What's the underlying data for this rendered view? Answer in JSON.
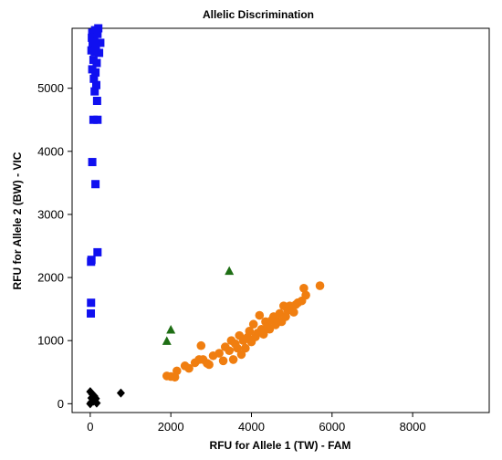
{
  "chart_data": {
    "type": "scatter",
    "title": "Allelic Discrimination",
    "xlabel": "RFU for Allele 1 (TW) - FAM",
    "ylabel": "RFU for Allele 2 (BW) - VIC",
    "xlim": [
      -450,
      9900
    ],
    "ylim": [
      -140,
      5950
    ],
    "x_ticks": [
      0,
      2000,
      4000,
      6000,
      8000
    ],
    "y_ticks": [
      0,
      1000,
      2000,
      3000,
      4000,
      5000
    ],
    "grid": false,
    "legend": "none",
    "series": [
      {
        "color": "#1010f0",
        "marker": "square",
        "points": [
          [
            50,
            5880
          ],
          [
            120,
            5920
          ],
          [
            200,
            5950
          ],
          [
            40,
            5800
          ],
          [
            100,
            5780
          ],
          [
            180,
            5860
          ],
          [
            60,
            5700
          ],
          [
            140,
            5650
          ],
          [
            250,
            5720
          ],
          [
            30,
            5600
          ],
          [
            110,
            5580
          ],
          [
            220,
            5560
          ],
          [
            80,
            5450
          ],
          [
            160,
            5400
          ],
          [
            50,
            5300
          ],
          [
            130,
            5250
          ],
          [
            90,
            5150
          ],
          [
            150,
            5050
          ],
          [
            110,
            4950
          ],
          [
            170,
            4800
          ],
          [
            80,
            4500
          ],
          [
            180,
            4500
          ],
          [
            50,
            3830
          ],
          [
            130,
            3480
          ],
          [
            180,
            2400
          ],
          [
            30,
            2280
          ],
          [
            20,
            2250
          ],
          [
            20,
            1600
          ],
          [
            15,
            1430
          ]
        ]
      },
      {
        "color": "#f07e10",
        "marker": "circle",
        "points": [
          [
            1900,
            440
          ],
          [
            2000,
            430
          ],
          [
            2100,
            420
          ],
          [
            2150,
            520
          ],
          [
            2350,
            600
          ],
          [
            2450,
            560
          ],
          [
            2600,
            650
          ],
          [
            2700,
            700
          ],
          [
            2800,
            700
          ],
          [
            2750,
            920
          ],
          [
            2900,
            640
          ],
          [
            2950,
            620
          ],
          [
            3050,
            760
          ],
          [
            3200,
            800
          ],
          [
            3300,
            680
          ],
          [
            3350,
            900
          ],
          [
            3450,
            840
          ],
          [
            3500,
            1000
          ],
          [
            3550,
            700
          ],
          [
            3600,
            950
          ],
          [
            3650,
            880
          ],
          [
            3700,
            1080
          ],
          [
            3750,
            780
          ],
          [
            3800,
            1000
          ],
          [
            3850,
            880
          ],
          [
            3900,
            1050
          ],
          [
            3950,
            1150
          ],
          [
            4000,
            980
          ],
          [
            4050,
            1260
          ],
          [
            4100,
            1060
          ],
          [
            4150,
            1120
          ],
          [
            4200,
            1400
          ],
          [
            4250,
            1180
          ],
          [
            4300,
            1100
          ],
          [
            4350,
            1300
          ],
          [
            4400,
            1220
          ],
          [
            4450,
            1180
          ],
          [
            4500,
            1320
          ],
          [
            4550,
            1380
          ],
          [
            4600,
            1250
          ],
          [
            4650,
            1300
          ],
          [
            4700,
            1430
          ],
          [
            4750,
            1300
          ],
          [
            4800,
            1550
          ],
          [
            4850,
            1380
          ],
          [
            4900,
            1480
          ],
          [
            4950,
            1550
          ],
          [
            5000,
            1500
          ],
          [
            5050,
            1450
          ],
          [
            5100,
            1570
          ],
          [
            5150,
            1600
          ],
          [
            5250,
            1630
          ],
          [
            5300,
            1830
          ],
          [
            5350,
            1720
          ],
          [
            5700,
            1870
          ]
        ]
      },
      {
        "color": "#1e6e14",
        "marker": "triangle",
        "points": [
          [
            1900,
            990
          ],
          [
            2000,
            1170
          ],
          [
            3450,
            2100
          ]
        ]
      },
      {
        "color": "#000000",
        "marker": "diamond",
        "points": [
          [
            0,
            190
          ],
          [
            50,
            150
          ],
          [
            100,
            120
          ],
          [
            30,
            90
          ],
          [
            140,
            80
          ],
          [
            80,
            40
          ],
          [
            20,
            20
          ],
          [
            160,
            10
          ],
          [
            0,
            0
          ],
          [
            760,
            170
          ]
        ]
      }
    ]
  }
}
